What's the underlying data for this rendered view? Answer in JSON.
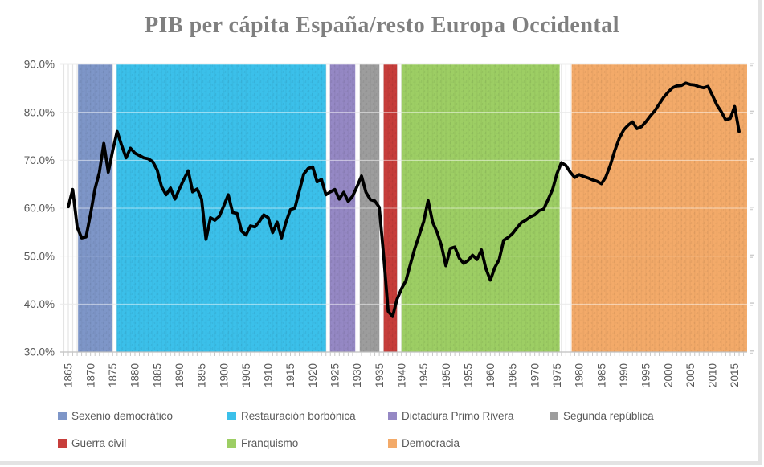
{
  "title": "PIB per cápita España/resto Europa Occidental",
  "y_axis": {
    "tick_labels": [
      "90.0%",
      "80.0%",
      "70.0%",
      "60.0%",
      "50.0%",
      "40.0%",
      "30.0%"
    ]
  },
  "x_axis": {
    "tick_labels": [
      "1865",
      "1870",
      "1875",
      "1880",
      "1885",
      "1890",
      "1895",
      "1900",
      "1905",
      "1910",
      "1915",
      "1920",
      "1925",
      "1930",
      "1935",
      "1940",
      "1945",
      "1950",
      "1955",
      "1960",
      "1965",
      "1970",
      "1975",
      "1980",
      "1985",
      "1990",
      "1995",
      "2000",
      "2005",
      "2010",
      "2015"
    ]
  },
  "colors": {
    "title_text": "#7F7F7F",
    "axis_text": "#595959",
    "gridline": "#D9D9D9",
    "line": "#000000"
  },
  "chart_data": {
    "type": "line",
    "title": "PIB per cápita España/resto Europa Occidental",
    "xlabel": "",
    "ylabel": "",
    "unit": "percent",
    "ylim": [
      30,
      90
    ],
    "ytick_step": 10,
    "xlim": [
      1863,
      2018
    ],
    "xtick_step": 5,
    "grid": "horizontal-major",
    "legend_position": "bottom",
    "line_color": "#000000",
    "x_start": 1865,
    "x_step": 1,
    "x_end": 2016,
    "values": [
      60.3,
      63.9,
      56.0,
      53.8,
      54.0,
      58.8,
      64.0,
      67.5,
      73.5,
      67.5,
      72.0,
      76.0,
      73.1,
      70.5,
      72.5,
      71.5,
      71.0,
      70.5,
      70.3,
      69.7,
      68.0,
      64.5,
      62.8,
      64.2,
      61.9,
      64.0,
      66.0,
      67.8,
      63.4,
      64.0,
      61.9,
      53.5,
      58.0,
      57.5,
      58.3,
      60.5,
      62.8,
      59.1,
      58.9,
      55.2,
      54.4,
      56.3,
      56.1,
      57.2,
      58.6,
      58.0,
      54.9,
      57.1,
      53.8,
      57.1,
      59.7,
      60.0,
      63.6,
      67.1,
      68.3,
      68.6,
      65.5,
      66.0,
      62.8,
      63.4,
      63.9,
      61.9,
      63.3,
      61.4,
      62.5,
      64.5,
      66.7,
      63.3,
      61.8,
      61.5,
      60.2,
      50.0,
      38.5,
      37.4,
      41.0,
      43.2,
      44.9,
      48.3,
      51.6,
      54.4,
      57.2,
      61.6,
      57.1,
      55.0,
      52.2,
      48.0,
      51.6,
      51.9,
      49.6,
      48.5,
      49.1,
      50.2,
      49.3,
      51.3,
      47.4,
      45.0,
      47.6,
      49.3,
      53.3,
      53.9,
      54.7,
      55.9,
      57.0,
      57.5,
      58.2,
      58.6,
      59.5,
      59.8,
      61.8,
      63.9,
      67.2,
      69.5,
      68.9,
      67.5,
      66.4,
      67.0,
      66.6,
      66.3,
      65.9,
      65.6,
      65.1,
      66.5,
      69.0,
      72.0,
      74.5,
      76.3,
      77.3,
      78.0,
      76.6,
      77.0,
      78.0,
      79.2,
      80.3,
      81.7,
      83.1,
      84.2,
      85.1,
      85.5,
      85.6,
      86.1,
      85.8,
      85.7,
      85.3,
      85.1,
      85.4,
      83.5,
      81.5,
      80.1,
      78.4,
      78.7,
      81.2,
      76.0
    ],
    "periods": [
      {
        "label": "Sexenio democrático",
        "color": "#7E96C8",
        "start": 1867.2,
        "end": 1874.9
      },
      {
        "label": "Restauración borbónica",
        "color": "#3BC0EA",
        "start": 1875.9,
        "end": 1923.0
      },
      {
        "label": "Dictadura Primo Rivera",
        "color": "#9588C4",
        "start": 1923.9,
        "end": 1929.6
      },
      {
        "label": "Segunda república",
        "color": "#9D9D9D",
        "start": 1930.6,
        "end": 1935.0
      },
      {
        "label": "Guerra civil",
        "color": "#C73E3B",
        "start": 1936.0,
        "end": 1939.0
      },
      {
        "label": "Franquismo",
        "color": "#9DCE64",
        "start": 1940.0,
        "end": 1975.6
      },
      {
        "label": "Democracia",
        "color": "#F3AA69",
        "start": 1978.3,
        "end": 2017.8
      }
    ]
  }
}
